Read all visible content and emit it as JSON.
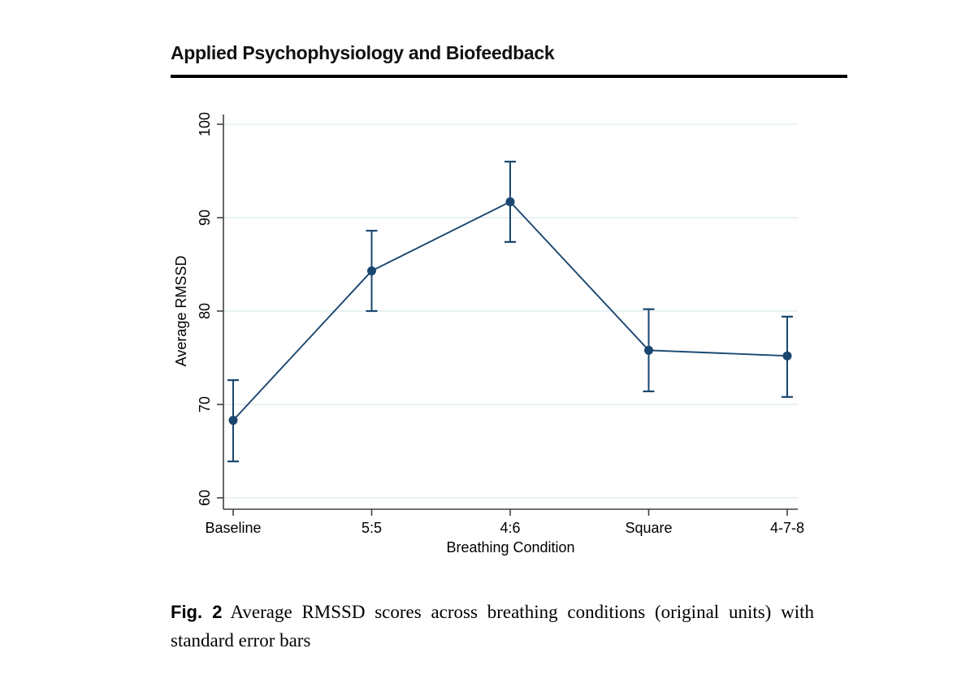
{
  "page": {
    "background": "#ffffff"
  },
  "header": {
    "journal_title": "Applied Psychophysiology and Biofeedback"
  },
  "chart_data": {
    "type": "line",
    "title": "",
    "xlabel": "Breathing Condition",
    "ylabel": "Average RMSSD",
    "categories": [
      "Baseline",
      "5:5",
      "4:6",
      "Square",
      "4-7-8"
    ],
    "series": [
      {
        "name": "Average RMSSD",
        "values": [
          68.3,
          84.3,
          91.7,
          75.8,
          75.2
        ],
        "error_low": [
          63.9,
          80.0,
          87.4,
          71.4,
          70.8
        ],
        "error_high": [
          72.6,
          88.6,
          96.0,
          80.2,
          79.4
        ]
      }
    ],
    "ylim": [
      60,
      100
    ],
    "yticks": [
      60,
      70,
      80,
      90,
      100
    ],
    "grid": "horizontal",
    "legend": "none",
    "marker": "filled-circle",
    "error_bars": "standard-error",
    "colors": {
      "series": "#1a476f",
      "grid": "#e2edf0",
      "axis": "#414141",
      "text": "#000000"
    }
  },
  "caption": {
    "label": "Fig. 2",
    "text": "Average RMSSD scores across breathing conditions (original units) with standard error bars"
  }
}
